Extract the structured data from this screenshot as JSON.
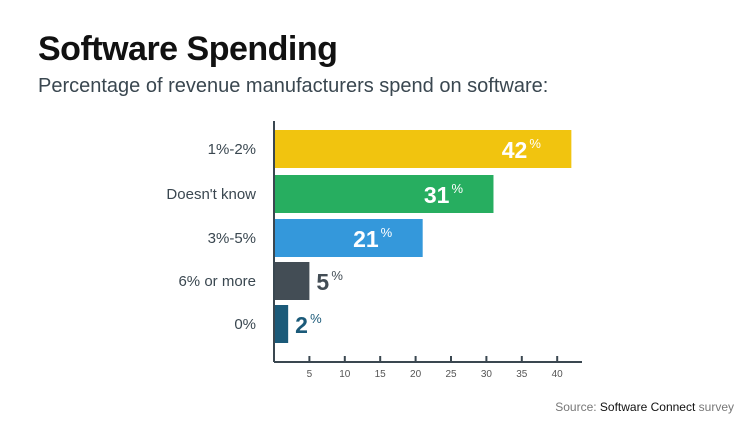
{
  "title": "Software Spending",
  "subtitle": "Percentage of revenue manufacturers spend on software:",
  "source": {
    "prefix": "Source: ",
    "name": "Software Connect",
    "suffix": " survey"
  },
  "chart_data": {
    "type": "bar",
    "orientation": "horizontal",
    "categories": [
      "1%-2%",
      "Doesn't know",
      "3%-5%",
      "6% or more",
      "0%"
    ],
    "values": [
      42,
      31,
      21,
      5,
      2
    ],
    "value_suffix": "%",
    "colors": [
      "#f1c40f",
      "#27ae60",
      "#3498db",
      "#434d55",
      "#1b5a79"
    ],
    "label_colors": [
      "#ffffff",
      "#ffffff",
      "#ffffff",
      "#434d55",
      "#1b5a79"
    ],
    "xticks": [
      5,
      10,
      15,
      20,
      25,
      30,
      35,
      40
    ],
    "xlim": [
      0,
      43
    ],
    "grid": false
  }
}
